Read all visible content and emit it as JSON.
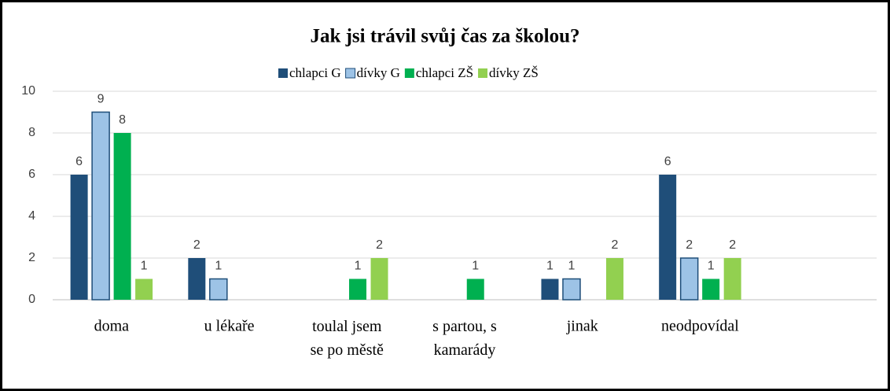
{
  "chart_data": {
    "type": "bar",
    "title": "Jak jsi trávil svůj čas za školou?",
    "categories": [
      "doma",
      "u lékaře",
      "toulal jsem se po městě",
      "s partou, s kamarády",
      "jinak",
      "neodpovídal",
      null
    ],
    "series": [
      {
        "name": "chlapci G",
        "color": "#1f4e79",
        "values": [
          6,
          2,
          null,
          null,
          1,
          6,
          null
        ]
      },
      {
        "name": "dívky G",
        "color": "#9dc3e6",
        "values": [
          9,
          1,
          null,
          null,
          1,
          2,
          null
        ]
      },
      {
        "name": "chlapci ZŠ",
        "color": "#00b050",
        "values": [
          8,
          null,
          1,
          1,
          null,
          1,
          null
        ]
      },
      {
        "name": "dívky ZŠ",
        "color": "#92d050",
        "values": [
          1,
          null,
          2,
          null,
          2,
          2,
          null
        ]
      }
    ],
    "ylim": [
      0,
      10
    ],
    "yticks": [
      0,
      2,
      4,
      6,
      8,
      10
    ],
    "grid": true,
    "legend": "top"
  }
}
